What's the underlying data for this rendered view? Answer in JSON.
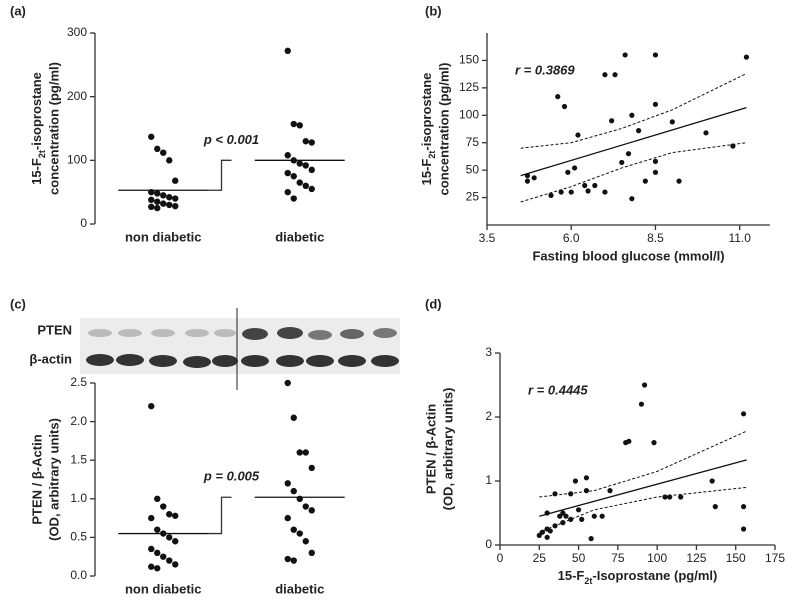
{
  "chart_data": [
    {
      "type": "strip",
      "label": "(a)",
      "ylabel": [
        "15-F2t-isoprostane",
        "concentration (pg/ml)"
      ],
      "categories": [
        "non diabetic",
        "diabetic"
      ],
      "values": [
        [
          137,
          118,
          112,
          100,
          68,
          50,
          48,
          45,
          42,
          40,
          38,
          35,
          32,
          30,
          28,
          27,
          25
        ],
        [
          272,
          157,
          155,
          130,
          128,
          108,
          100,
          95,
          92,
          85,
          80,
          75,
          65,
          60,
          55,
          50,
          40
        ]
      ],
      "means": [
        53,
        100
      ],
      "annotation": "p < 0.001",
      "ylim": [
        0,
        300
      ],
      "yticks": [
        0,
        100,
        200,
        300
      ]
    },
    {
      "type": "scatter",
      "label": "(b)",
      "ylabel": [
        "15-F2t-isoprostane",
        "concentration (pg/ml)"
      ],
      "xlabel": "Fasting blood glucose (mmol/l)",
      "annotation": "r = 0.3869",
      "x": [
        4.7,
        4.7,
        4.9,
        5.4,
        5.6,
        5.7,
        5.8,
        5.9,
        6.0,
        6.1,
        6.2,
        6.4,
        6.5,
        6.7,
        7.0,
        7.0,
        7.2,
        7.3,
        7.5,
        7.6,
        7.7,
        7.8,
        7.8,
        8.0,
        8.2,
        8.5,
        8.5,
        8.5,
        8.5,
        9.0,
        9.2,
        10.0,
        10.8,
        11.2
      ],
      "y": [
        40,
        45,
        43,
        27,
        117,
        30,
        108,
        48,
        30,
        52,
        82,
        36,
        31,
        36,
        137,
        30,
        95,
        137,
        57,
        155,
        65,
        100,
        24,
        86,
        40,
        155,
        110,
        58,
        48,
        94,
        40,
        84,
        72,
        153
      ],
      "fit_x": [
        4.5,
        11.2
      ],
      "fit_y": [
        45,
        107
      ],
      "ci_x": [
        4.5,
        6,
        7.5,
        9,
        11.2
      ],
      "ci_upper": [
        70,
        75,
        88,
        105,
        138
      ],
      "ci_lower": [
        21,
        35,
        52,
        66,
        75
      ],
      "xlim": [
        3.5,
        11.9
      ],
      "xticks": [
        3.5,
        {
          "value": 6,
          "label": "6.0"
        },
        8.5,
        {
          "value": 11,
          "label": "11.0"
        }
      ],
      "ylim": [
        0,
        175
      ],
      "yticks": [
        25,
        50,
        75,
        100,
        125,
        150
      ]
    },
    {
      "type": "strip",
      "label": "(c)",
      "blot_labels": [
        "PTEN",
        "β-actin"
      ],
      "ylabel": [
        "PTEN / β-Actin",
        "(OD, arbitrary units)"
      ],
      "categories": [
        "non diabetic",
        "diabetic"
      ],
      "values": [
        [
          2.2,
          1.0,
          0.9,
          0.8,
          0.78,
          0.75,
          0.6,
          0.55,
          0.5,
          0.45,
          0.35,
          0.3,
          0.25,
          0.2,
          0.15,
          0.12,
          0.1
        ],
        [
          2.5,
          2.05,
          1.6,
          1.6,
          1.4,
          1.2,
          1.1,
          1.0,
          0.9,
          0.85,
          0.75,
          0.6,
          0.55,
          0.45,
          0.3,
          0.22,
          0.2
        ]
      ],
      "means": [
        0.55,
        1.02
      ],
      "annotation": "p = 0.005",
      "ylim": [
        0,
        2.5
      ],
      "yticks": [
        {
          "value": 0,
          "label": "0.0"
        },
        0.5,
        {
          "value": 1,
          "label": "1.0"
        },
        1.5,
        {
          "value": 2,
          "label": "2.0"
        },
        2.5
      ]
    },
    {
      "type": "scatter",
      "label": "(d)",
      "ylabel": [
        "PTEN / β-Actin",
        "(OD, arbitrary units)"
      ],
      "xlabel": "15-F2t-Isoprostane (pg/ml)",
      "annotation": "r = 0.4445",
      "x": [
        25,
        27,
        30,
        30,
        32,
        35,
        30,
        35,
        38,
        40,
        40,
        42,
        45,
        45,
        48,
        50,
        52,
        55,
        55,
        58,
        60,
        65,
        70,
        80,
        82,
        90,
        92,
        98,
        105,
        108,
        115,
        135,
        137,
        155,
        155,
        155
      ],
      "y": [
        0.15,
        0.2,
        0.12,
        0.25,
        0.22,
        0.3,
        0.5,
        0.8,
        0.45,
        0.35,
        0.5,
        0.45,
        0.8,
        0.4,
        1.0,
        0.55,
        0.4,
        1.05,
        0.85,
        0.1,
        0.45,
        0.45,
        0.85,
        1.6,
        1.62,
        2.2,
        2.5,
        1.6,
        0.75,
        0.75,
        0.75,
        1.0,
        0.6,
        2.05,
        0.6,
        0.25
      ],
      "fit_x": [
        25,
        157
      ],
      "fit_y": [
        0.45,
        1.33
      ],
      "ci_x": [
        25,
        60,
        100,
        157
      ],
      "ci_upper": [
        0.75,
        0.85,
        1.15,
        1.78
      ],
      "ci_lower": [
        0.2,
        0.55,
        0.75,
        0.9
      ],
      "xlim": [
        0,
        175
      ],
      "xticks": [
        0,
        25,
        50,
        75,
        100,
        125,
        150,
        175
      ],
      "ylim": [
        0,
        3
      ],
      "yticks": [
        0,
        1,
        2,
        3
      ]
    }
  ]
}
